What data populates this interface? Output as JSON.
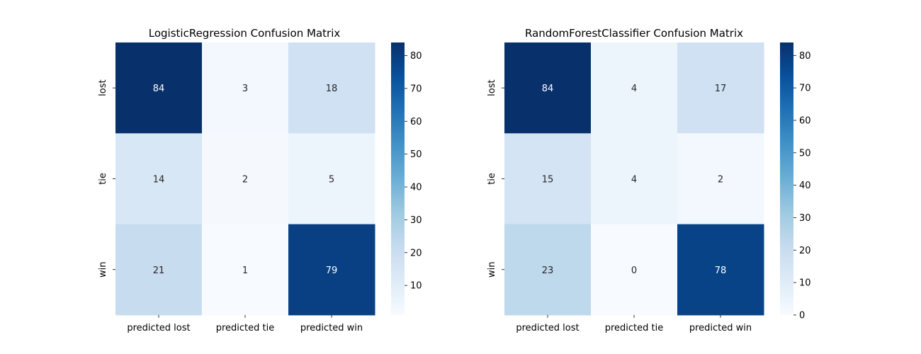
{
  "chart_data": [
    {
      "type": "heatmap",
      "title": "LogisticRegression Confusion Matrix",
      "x_categories": [
        "predicted lost",
        "predicted tie",
        "predicted win"
      ],
      "y_categories": [
        "lost",
        "tie",
        "win"
      ],
      "values": [
        [
          84,
          3,
          18
        ],
        [
          14,
          2,
          5
        ],
        [
          21,
          1,
          79
        ]
      ],
      "colormap": "Blues",
      "vmin": 1,
      "vmax": 84,
      "colorbar_ticks": [
        10,
        20,
        30,
        40,
        50,
        60,
        70,
        80
      ]
    },
    {
      "type": "heatmap",
      "title": "RandomForestClassifier Confusion Matrix",
      "x_categories": [
        "predicted lost",
        "predicted tie",
        "predicted win"
      ],
      "y_categories": [
        "lost",
        "tie",
        "win"
      ],
      "values": [
        [
          84,
          4,
          17
        ],
        [
          15,
          4,
          2
        ],
        [
          23,
          0,
          78
        ]
      ],
      "colormap": "Blues",
      "vmin": 0,
      "vmax": 84,
      "colorbar_ticks": [
        0,
        10,
        20,
        30,
        40,
        50,
        60,
        70,
        80
      ]
    }
  ]
}
